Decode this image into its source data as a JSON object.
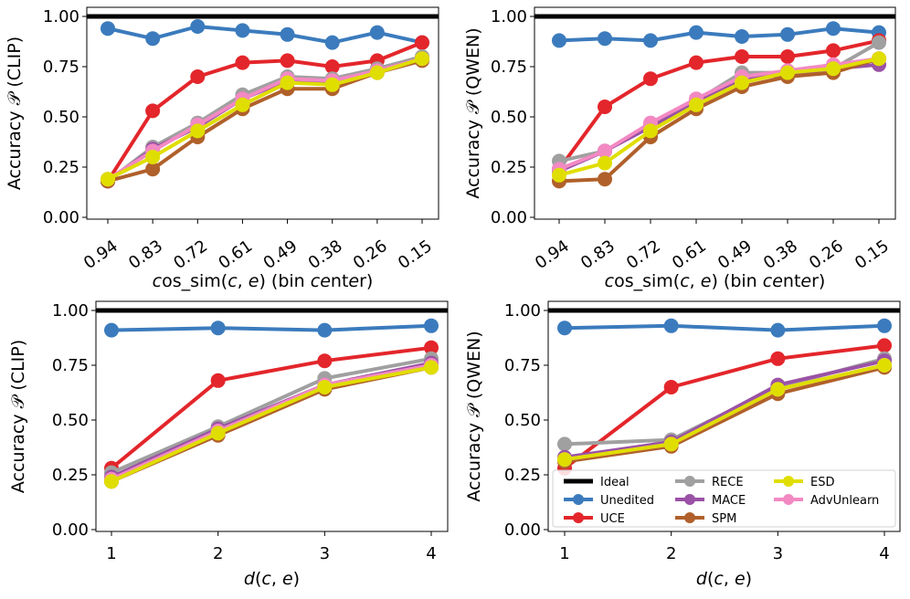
{
  "colors": {
    "Ideal": "#000000",
    "Unedited": "#3b7bbd",
    "UCE": "#e3262b",
    "RECE": "#a0a0a0",
    "MACE": "#9a52a6",
    "SPM": "#b0602a",
    "ESD": "#e0de00",
    "AdvUnlearn": "#f389c3"
  },
  "legend_labels": [
    "Ideal",
    "Unedited",
    "UCE",
    "RECE",
    "MACE",
    "SPM",
    "ESD",
    "AdvUnlearn"
  ],
  "chart_data": [
    {
      "id": "tl",
      "type": "line",
      "title": "",
      "xlabel": "cos_sim(c, e) (bin center)",
      "xlabel_math": true,
      "ylabel": "Accuracy 𝒫 (CLIP)",
      "categories": [
        "0.94",
        "0.83",
        "0.72",
        "0.61",
        "0.49",
        "0.38",
        "0.26",
        "0.15"
      ],
      "rotate_xticks": true,
      "ylim": [
        0,
        1.0
      ],
      "yticks": [
        "0.00",
        "0.25",
        "0.50",
        "0.75",
        "1.00"
      ],
      "series": [
        {
          "name": "Ideal",
          "values": [
            1,
            1,
            1,
            1,
            1,
            1,
            1,
            1
          ]
        },
        {
          "name": "Unedited",
          "values": [
            0.94,
            0.89,
            0.95,
            0.93,
            0.91,
            0.87,
            0.92,
            0.87
          ]
        },
        {
          "name": "UCE",
          "values": [
            0.18,
            0.53,
            0.7,
            0.77,
            0.78,
            0.75,
            0.78,
            0.87
          ]
        },
        {
          "name": "RECE",
          "values": [
            0.18,
            0.35,
            0.47,
            0.61,
            0.7,
            0.69,
            0.74,
            0.8
          ]
        },
        {
          "name": "MACE",
          "values": [
            0.18,
            0.34,
            0.45,
            0.59,
            0.68,
            0.67,
            0.73,
            0.79
          ]
        },
        {
          "name": "SPM",
          "values": [
            0.18,
            0.24,
            0.4,
            0.54,
            0.64,
            0.64,
            0.72,
            0.78
          ]
        },
        {
          "name": "AdvUnlearn",
          "values": [
            0.19,
            0.33,
            0.46,
            0.59,
            0.69,
            0.68,
            0.73,
            0.79
          ]
        },
        {
          "name": "ESD",
          "values": [
            0.19,
            0.3,
            0.43,
            0.56,
            0.67,
            0.66,
            0.72,
            0.79
          ]
        }
      ]
    },
    {
      "id": "tr",
      "type": "line",
      "title": "",
      "xlabel": "cos_sim(c, e) (bin center)",
      "xlabel_math": true,
      "ylabel": "Accuracy 𝒫 (QWEN)",
      "categories": [
        "0.94",
        "0.83",
        "0.72",
        "0.61",
        "0.49",
        "0.38",
        "0.26",
        "0.15"
      ],
      "rotate_xticks": true,
      "ylim": [
        0,
        1.0
      ],
      "yticks": [
        "0.00",
        "0.25",
        "0.50",
        "0.75",
        "1.00"
      ],
      "series": [
        {
          "name": "Ideal",
          "values": [
            1,
            1,
            1,
            1,
            1,
            1,
            1,
            1
          ]
        },
        {
          "name": "Unedited",
          "values": [
            0.88,
            0.89,
            0.88,
            0.92,
            0.9,
            0.91,
            0.94,
            0.92
          ]
        },
        {
          "name": "UCE",
          "values": [
            0.24,
            0.55,
            0.69,
            0.77,
            0.8,
            0.8,
            0.83,
            0.88
          ]
        },
        {
          "name": "RECE",
          "values": [
            0.28,
            0.33,
            0.46,
            0.58,
            0.72,
            0.72,
            0.74,
            0.87
          ]
        },
        {
          "name": "MACE",
          "values": [
            0.23,
            0.33,
            0.45,
            0.57,
            0.69,
            0.71,
            0.74,
            0.76
          ]
        },
        {
          "name": "SPM",
          "values": [
            0.18,
            0.19,
            0.4,
            0.54,
            0.65,
            0.7,
            0.72,
            0.79
          ]
        },
        {
          "name": "AdvUnlearn",
          "values": [
            0.24,
            0.33,
            0.47,
            0.59,
            0.7,
            0.73,
            0.76,
            0.79
          ]
        },
        {
          "name": "ESD",
          "values": [
            0.21,
            0.27,
            0.43,
            0.56,
            0.67,
            0.72,
            0.74,
            0.79
          ]
        }
      ]
    },
    {
      "id": "bl",
      "type": "line",
      "title": "",
      "xlabel": "d(c, e)",
      "xlabel_math": true,
      "ylabel": "Accuracy 𝒫 (CLIP)",
      "categories": [
        "1",
        "2",
        "3",
        "4"
      ],
      "rotate_xticks": false,
      "ylim": [
        0,
        1.0
      ],
      "yticks": [
        "0.00",
        "0.25",
        "0.50",
        "0.75",
        "1.00"
      ],
      "series": [
        {
          "name": "Ideal",
          "values": [
            1,
            1,
            1,
            1
          ]
        },
        {
          "name": "Unedited",
          "values": [
            0.91,
            0.92,
            0.91,
            0.93
          ]
        },
        {
          "name": "UCE",
          "values": [
            0.28,
            0.68,
            0.77,
            0.83
          ]
        },
        {
          "name": "RECE",
          "values": [
            0.26,
            0.47,
            0.69,
            0.78
          ]
        },
        {
          "name": "MACE",
          "values": [
            0.24,
            0.46,
            0.66,
            0.76
          ]
        },
        {
          "name": "SPM",
          "values": [
            0.22,
            0.43,
            0.64,
            0.74
          ]
        },
        {
          "name": "AdvUnlearn",
          "values": [
            0.23,
            0.45,
            0.66,
            0.75
          ]
        },
        {
          "name": "ESD",
          "values": [
            0.22,
            0.44,
            0.65,
            0.74
          ]
        }
      ]
    },
    {
      "id": "br",
      "type": "line",
      "title": "",
      "xlabel": "d(c, e)",
      "xlabel_math": true,
      "ylabel": "Accuracy 𝒫 (QWEN)",
      "categories": [
        "1",
        "2",
        "3",
        "4"
      ],
      "rotate_xticks": false,
      "ylim": [
        0,
        1.0
      ],
      "yticks": [
        "0.00",
        "0.25",
        "0.50",
        "0.75",
        "1.00"
      ],
      "legend": "lower-right",
      "series": [
        {
          "name": "Ideal",
          "values": [
            1,
            1,
            1,
            1
          ]
        },
        {
          "name": "Unedited",
          "values": [
            0.92,
            0.93,
            0.91,
            0.93
          ]
        },
        {
          "name": "UCE",
          "values": [
            0.28,
            0.65,
            0.78,
            0.84
          ]
        },
        {
          "name": "RECE",
          "values": [
            0.39,
            0.41,
            0.65,
            0.78
          ]
        },
        {
          "name": "MACE",
          "values": [
            0.33,
            0.4,
            0.66,
            0.77
          ]
        },
        {
          "name": "SPM",
          "values": [
            0.31,
            0.38,
            0.62,
            0.74
          ]
        },
        {
          "name": "AdvUnlearn",
          "values": [
            0.32,
            0.39,
            0.64,
            0.75
          ]
        },
        {
          "name": "ESD",
          "values": [
            0.32,
            0.39,
            0.64,
            0.75
          ]
        }
      ]
    }
  ]
}
